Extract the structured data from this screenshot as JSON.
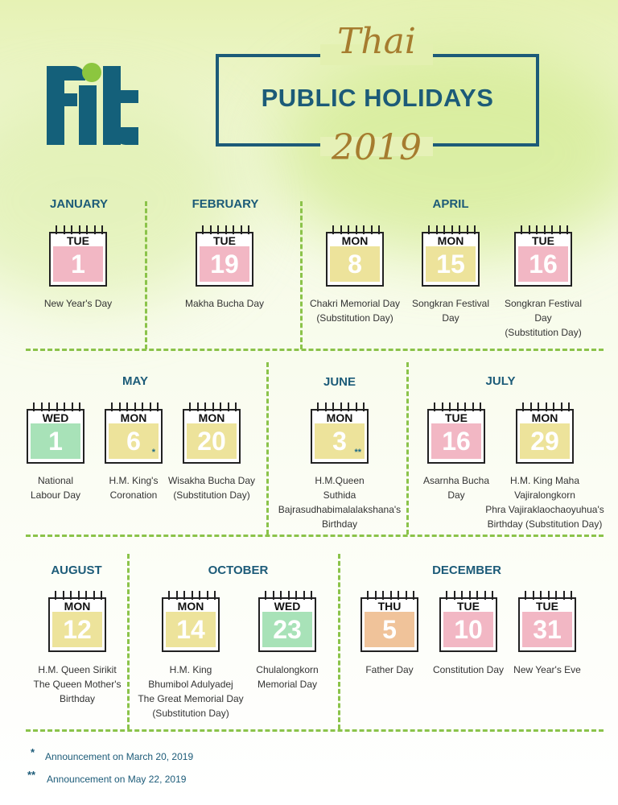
{
  "title": {
    "script_top": "Thai",
    "main": "PUBLIC HOLIDAYS",
    "script_bottom": "2019"
  },
  "months": {
    "january": "JANUARY",
    "february": "FEBRUARY",
    "april": "APRIL",
    "may": "MAY",
    "june": "JUNE",
    "july": "JULY",
    "august": "AUGUST",
    "october": "OCTOBER",
    "december": "DECEMBER"
  },
  "holidays": [
    {
      "dow": "TUE",
      "day": "1",
      "color": "#f2b7c4",
      "lines": [
        "New Year's Day"
      ]
    },
    {
      "dow": "TUE",
      "day": "19",
      "color": "#f2b7c4",
      "lines": [
        "Makha Bucha Day"
      ]
    },
    {
      "dow": "MON",
      "day": "8",
      "color": "#ede39b",
      "lines": [
        "Chakri Memorial Day",
        "(Substitution Day)"
      ]
    },
    {
      "dow": "MON",
      "day": "15",
      "color": "#ede39b",
      "lines": [
        "Songkran Festival",
        "Day"
      ]
    },
    {
      "dow": "TUE",
      "day": "16",
      "color": "#f2b7c4",
      "lines": [
        "Songkran Festival",
        "Day",
        "(Substitution Day)"
      ]
    },
    {
      "dow": "WED",
      "day": "1",
      "color": "#a8e2b8",
      "lines": [
        "National",
        "Labour Day"
      ]
    },
    {
      "dow": "MON",
      "day": "6",
      "color": "#ede39b",
      "mark": "*",
      "lines": [
        "H.M. King's",
        "Coronation"
      ]
    },
    {
      "dow": "MON",
      "day": "20",
      "color": "#ede39b",
      "lines": [
        "Wisakha Bucha Day",
        "(Substitution Day)"
      ]
    },
    {
      "dow": "MON",
      "day": "3",
      "color": "#ede39b",
      "mark": "**",
      "lines": [
        "H.M.Queen",
        "Suthida",
        "Bajrasudhabimalalakshana's",
        "Birthday"
      ]
    },
    {
      "dow": "TUE",
      "day": "16",
      "color": "#f2b7c4",
      "lines": [
        "Asarnha Bucha",
        "Day"
      ]
    },
    {
      "dow": "MON",
      "day": "29",
      "color": "#ede39b",
      "lines": [
        "H.M. King Maha",
        "Vajiralongkorn",
        "Phra Vajiraklaochaoyuhua's",
        "Birthday (Substitution Day)"
      ]
    },
    {
      "dow": "MON",
      "day": "12",
      "color": "#ede39b",
      "lines": [
        "H.M. Queen Sirikit",
        "The Queen Mother's",
        "Birthday"
      ]
    },
    {
      "dow": "MON",
      "day": "14",
      "color": "#ede39b",
      "lines": [
        "H.M. King",
        "Bhumibol Adulyadej",
        "The Great Memorial Day",
        "(Substitution Day)"
      ]
    },
    {
      "dow": "WED",
      "day": "23",
      "color": "#a8e2b8",
      "lines": [
        "Chulalongkorn",
        "Memorial Day"
      ]
    },
    {
      "dow": "THU",
      "day": "5",
      "color": "#f0c39a",
      "lines": [
        "Father Day"
      ]
    },
    {
      "dow": "TUE",
      "day": "10",
      "color": "#f2b7c4",
      "lines": [
        "Constitution Day"
      ]
    },
    {
      "dow": "TUE",
      "day": "31",
      "color": "#f2b7c4",
      "lines": [
        "New Year's Eve"
      ]
    }
  ],
  "footnotes": [
    {
      "mark": "*",
      "text": "Announcement on March 20, 2019"
    },
    {
      "mark": "**",
      "text": "Announcement on May 22, 2019"
    }
  ]
}
